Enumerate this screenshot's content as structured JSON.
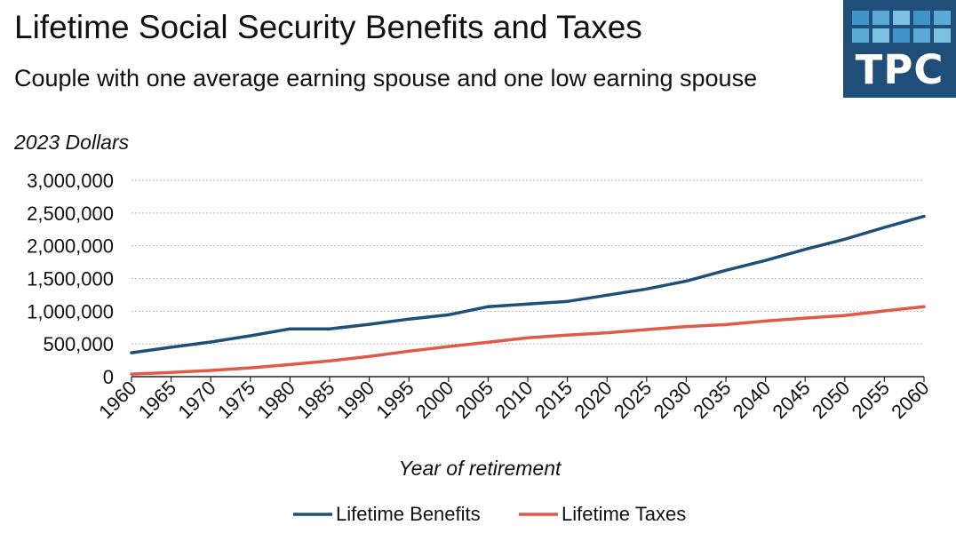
{
  "title": "Lifetime Social Security Benefits and Taxes",
  "subtitle": "Couple with one average earning spouse and one low earning spouse",
  "logo": {
    "text": "TPC",
    "background": "#1f4e79",
    "tile_colors": [
      "#3f94c7",
      "#5aaad6",
      "#7dc0e2"
    ]
  },
  "colors": {
    "benefits": "#1f4e79",
    "taxes": "#e05a47",
    "grid": "#b8b8b8",
    "axis": "#222222"
  },
  "chart_data": {
    "type": "line",
    "title": "Lifetime Social Security Benefits and Taxes",
    "subtitle": "Couple with one average earning spouse and one low earning spouse",
    "unit_label": "2023 Dollars",
    "xlabel": "Year of retirement",
    "ylabel": "2023 Dollars",
    "x": [
      1960,
      1965,
      1970,
      1975,
      1980,
      1985,
      1990,
      1995,
      2000,
      2005,
      2010,
      2015,
      2020,
      2025,
      2030,
      2035,
      2040,
      2045,
      2050,
      2055,
      2060
    ],
    "ylim": [
      0,
      3000000
    ],
    "yticks": [
      0,
      500000,
      1000000,
      1500000,
      2000000,
      2500000,
      3000000
    ],
    "ytick_labels": [
      "0",
      "500,000",
      "1,000,000",
      "1,500,000",
      "2,000,000",
      "2,500,000",
      "3,000,000"
    ],
    "grid": true,
    "legend_position": "bottom-center",
    "series": [
      {
        "name": "Lifetime Benefits",
        "values": [
          365000,
          450000,
          530000,
          625000,
          730000,
          730000,
          800000,
          880000,
          945000,
          1070000,
          1110000,
          1150000,
          1245000,
          1340000,
          1460000,
          1625000,
          1775000,
          1945000,
          2100000,
          2280000,
          2450000
        ]
      },
      {
        "name": "Lifetime Taxes",
        "values": [
          40000,
          65000,
          95000,
          135000,
          185000,
          240000,
          310000,
          390000,
          460000,
          525000,
          595000,
          635000,
          670000,
          720000,
          765000,
          795000,
          850000,
          895000,
          935000,
          1005000,
          1070000
        ]
      }
    ]
  }
}
